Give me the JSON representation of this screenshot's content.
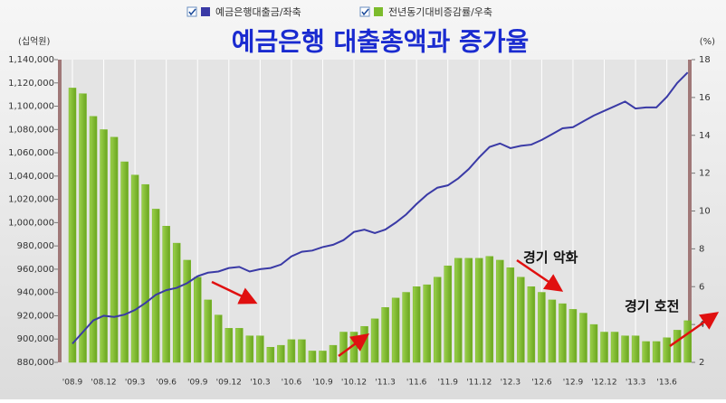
{
  "chart_data": {
    "type": "combo",
    "title": "예금은행 대출총액과 증가율",
    "y_label": "(십억원)",
    "y2_label": "(%)",
    "categories": [
      "'08.9",
      null,
      null,
      "'08.12",
      null,
      null,
      "'09.3",
      null,
      null,
      "'09.6",
      null,
      null,
      "'09.9",
      null,
      null,
      "'09.12",
      null,
      null,
      "'10.3",
      null,
      null,
      "'10.6",
      null,
      null,
      "'10.9",
      null,
      null,
      "'10.12",
      null,
      null,
      "'11.3",
      null,
      null,
      "'11.6",
      null,
      null,
      "'11.9",
      null,
      null,
      "'11.12",
      null,
      null,
      "'12.3",
      null,
      null,
      "'12.6",
      null,
      null,
      "'12.9",
      null,
      null,
      "'12.12",
      null,
      null,
      "'13.3",
      null,
      null,
      "'13.6",
      null,
      null
    ],
    "series": [
      {
        "name": "예금은행대출금/좌축",
        "type": "line",
        "color": "#3a3aa6",
        "values": [
          896000,
          906000,
          916000,
          920000,
          919000,
          921000,
          925000,
          931000,
          938000,
          942000,
          944000,
          948000,
          954000,
          957000,
          958000,
          961000,
          962000,
          958000,
          960000,
          961000,
          964000,
          971000,
          975000,
          976000,
          979000,
          981000,
          985000,
          992000,
          994000,
          991000,
          994000,
          1000000,
          1007000,
          1016000,
          1024000,
          1030000,
          1032000,
          1038000,
          1046000,
          1056000,
          1065000,
          1068000,
          1064000,
          1066000,
          1067000,
          1071000,
          1076000,
          1081000,
          1082000,
          1087000,
          1092000,
          1096000,
          1100000,
          1104000,
          1098000,
          1099000,
          1099000,
          1108000,
          1120000,
          1129000
        ]
      },
      {
        "name": "전년동기대비증감률/우축",
        "type": "bar",
        "axis": "y2",
        "color": "#7cbb2c",
        "values": [
          16.5,
          16.2,
          15.0,
          14.3,
          13.9,
          12.6,
          11.9,
          11.4,
          10.1,
          9.2,
          8.3,
          7.4,
          6.5,
          5.3,
          4.5,
          3.8,
          3.8,
          3.4,
          3.4,
          2.8,
          2.9,
          3.2,
          3.2,
          2.6,
          2.6,
          2.9,
          3.6,
          3.6,
          3.9,
          4.3,
          4.9,
          5.4,
          5.7,
          6.0,
          6.1,
          6.5,
          7.1,
          7.5,
          7.5,
          7.5,
          7.6,
          7.4,
          7.0,
          6.5,
          6.0,
          5.7,
          5.3,
          5.1,
          4.8,
          4.6,
          4.0,
          3.6,
          3.6,
          3.4,
          3.4,
          3.1,
          3.1,
          3.3,
          3.7,
          4.2
        ]
      }
    ],
    "ylim": [
      880000,
      1140000
    ],
    "yticks": [
      {
        "value": 880000,
        "label": "880,000"
      },
      {
        "value": 900000,
        "label": "900,000"
      },
      {
        "value": 920000,
        "label": "920,000"
      },
      {
        "value": 940000,
        "label": "940,000"
      },
      {
        "value": 960000,
        "label": "960,000"
      },
      {
        "value": 980000,
        "label": "980,000"
      },
      {
        "value": 1000000,
        "label": "1,000,000"
      },
      {
        "value": 1020000,
        "label": "1,020,000"
      },
      {
        "value": 1040000,
        "label": "1,040,000"
      },
      {
        "value": 1060000,
        "label": "1,060,000"
      },
      {
        "value": 1080000,
        "label": "1,080,000"
      },
      {
        "value": 1100000,
        "label": "1,100,000"
      },
      {
        "value": 1120000,
        "label": "1,120,000"
      },
      {
        "value": 1140000,
        "label": "1,140,000"
      }
    ],
    "y2lim": [
      2,
      18
    ],
    "y2ticks": [
      2,
      4,
      6,
      8,
      10,
      12,
      14,
      16,
      18
    ],
    "grid": "vertical",
    "legend": "top",
    "annotations": [
      "경기 악화",
      "경기 호전"
    ]
  }
}
